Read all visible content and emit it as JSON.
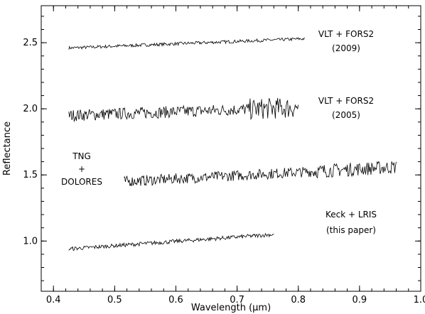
{
  "chart_data": {
    "type": "line",
    "title": "",
    "xlabel": "Wavelength (μm)",
    "ylabel": "Reflectance",
    "xlim": [
      0.38,
      1.0
    ],
    "ylim": [
      0.62,
      2.78
    ],
    "x_ticks": [
      0.4,
      0.5,
      0.6,
      0.7,
      0.8,
      0.9,
      1.0
    ],
    "x_tick_labels": [
      "0.4",
      "0.5",
      "0.6",
      "0.7",
      "0.8",
      "0.9",
      "1.0"
    ],
    "y_ticks": [
      1.0,
      1.5,
      2.0,
      2.5
    ],
    "y_tick_labels": [
      "1.0",
      "1.5",
      "2.0",
      "2.5"
    ],
    "grid": false,
    "series": [
      {
        "label_lines": [
          "VLT + FORS2",
          "(2009)"
        ],
        "x_start": 0.425,
        "x_end": 0.81,
        "y_start": 2.46,
        "y_end": 2.53,
        "noise": 0.012
      },
      {
        "label_lines": [
          "VLT + FORS2",
          "(2005)"
        ],
        "x_start": 0.425,
        "x_end": 0.8,
        "y_start": 1.95,
        "y_end": 2.01,
        "noise": 0.045
      },
      {
        "label_lines": [
          "TNG",
          "+",
          "DOLORES"
        ],
        "x_start": 0.515,
        "x_end": 0.96,
        "y_start": 1.45,
        "y_end": 1.56,
        "noise": 0.04
      },
      {
        "label_lines": [
          "Keck + LRIS",
          "(this paper)"
        ],
        "x_start": 0.425,
        "x_end": 0.76,
        "y_start": 0.94,
        "y_end": 1.05,
        "noise": 0.015
      }
    ]
  }
}
